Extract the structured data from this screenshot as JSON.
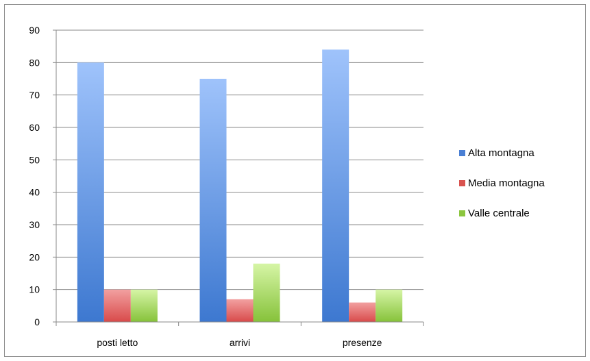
{
  "chart_data": {
    "type": "bar",
    "categories": [
      "posti letto",
      "arrivi",
      "presenze"
    ],
    "series": [
      {
        "name": "Alta montagna",
        "values": [
          80,
          75,
          84
        ],
        "color": "#4a7fd4"
      },
      {
        "name": "Media montagna",
        "values": [
          10,
          7,
          6
        ],
        "color": "#d9534f"
      },
      {
        "name": "Valle centrale",
        "values": [
          10,
          18,
          10
        ],
        "color": "#8cc63f"
      }
    ],
    "y_ticks": [
      "0",
      "10",
      "20",
      "30",
      "40",
      "50",
      "60",
      "70",
      "80",
      "90"
    ],
    "ylim": [
      0,
      90
    ],
    "grid": true,
    "legend_position": "right"
  }
}
